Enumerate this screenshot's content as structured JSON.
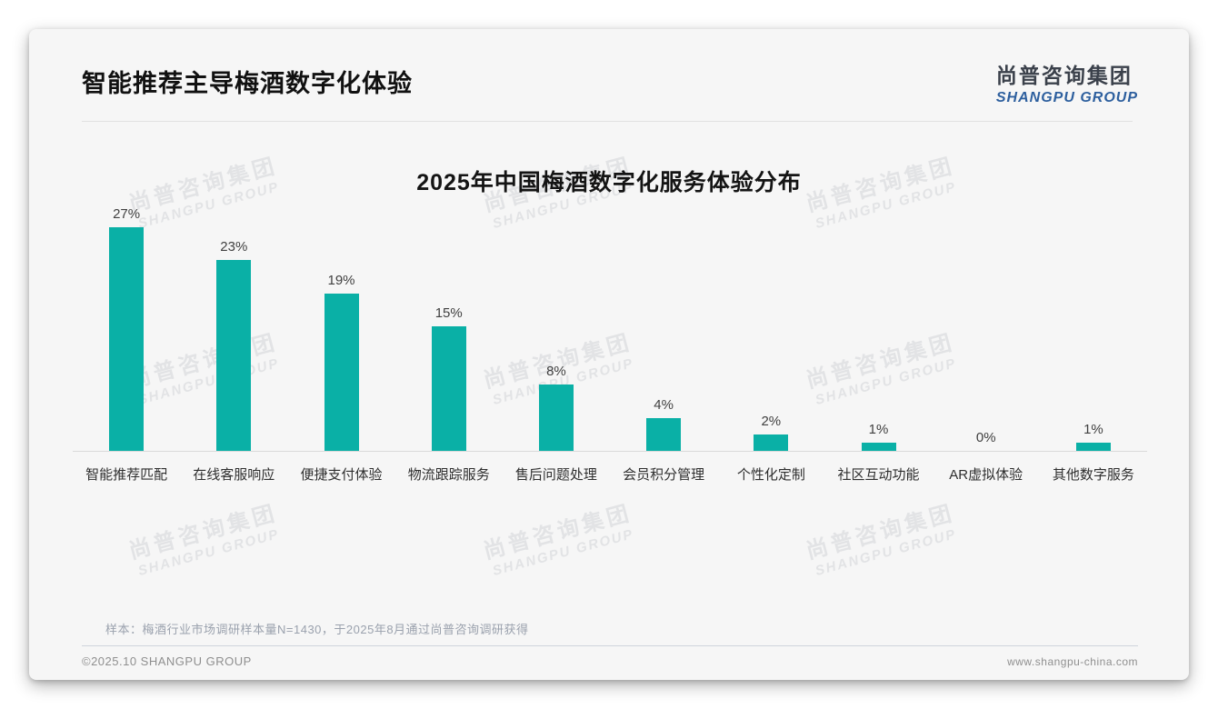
{
  "header": {
    "title": "智能推荐主导梅酒数字化体验"
  },
  "logo": {
    "chinese": "尚普咨询集团",
    "english": "SHANGPU GROUP"
  },
  "chart_data": {
    "type": "bar",
    "title": "2025年中国梅酒数字化服务体验分布",
    "categories": [
      "智能推荐匹配",
      "在线客服响应",
      "便捷支付体验",
      "物流跟踪服务",
      "售后问题处理",
      "会员积分管理",
      "个性化定制",
      "社区互动功能",
      "AR虚拟体验",
      "其他数字服务"
    ],
    "values": [
      27,
      23,
      19,
      15,
      8,
      4,
      2,
      1,
      0,
      1
    ],
    "unit": "%",
    "xlabel": "",
    "ylabel": "",
    "ylim": [
      0,
      30
    ],
    "grid": false,
    "legend": false,
    "bar_color": "#0ab0a6",
    "value_label_format": "percent"
  },
  "watermark": {
    "line1": "尚普咨询集团",
    "line2": "SHANGPU GROUP"
  },
  "footnote": "样本：梅酒行业市场调研样本量N=1430，于2025年8月通过尚普咨询调研获得",
  "footer": {
    "copyright": "©2025.10 SHANGPU GROUP",
    "website": "www.shangpu-china.com"
  },
  "colors": {
    "bar": "#0ab0a6",
    "logo_blue": "#2d5f9e",
    "axis_line": "#d9d9d9"
  }
}
